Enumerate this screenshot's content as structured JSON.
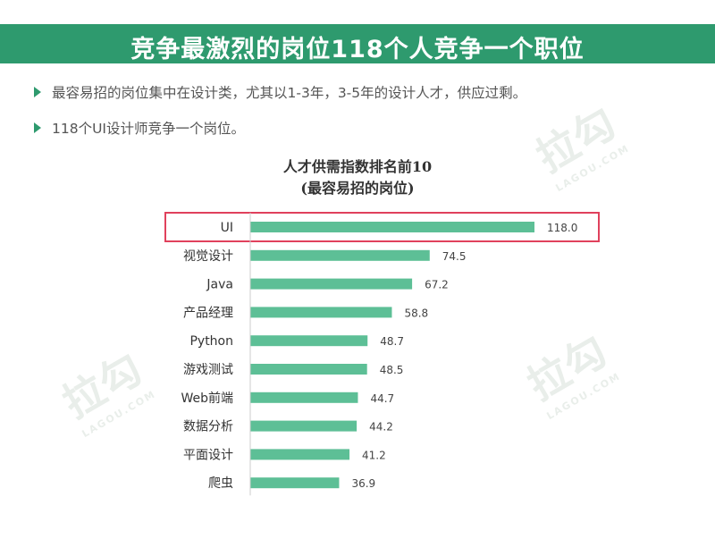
{
  "header": {
    "title": "竞争最激烈的岗位118个人竞争一个职位",
    "accent_color": "#2e9a6e"
  },
  "bullets": [
    "最容易招的岗位集中在设计类，尤其以1-3年，3-5年的设计人才，供应过剩。",
    "118个UI设计师竞争一个岗位。"
  ],
  "watermark": {
    "brand": "拉勾",
    "sub": "LAGOU.COM"
  },
  "chart_data": {
    "type": "bar",
    "orientation": "horizontal",
    "title": "人才供需指数排名前10",
    "subtitle": "(最容易招的岗位)",
    "categories": [
      "UI",
      "视觉设计",
      "Java",
      "产品经理",
      "Python",
      "游戏测试",
      "Web前端",
      "数据分析",
      "平面设计",
      "爬虫"
    ],
    "values": [
      118.0,
      74.5,
      67.2,
      58.8,
      48.7,
      48.5,
      44.7,
      44.2,
      41.2,
      36.9
    ],
    "value_labels": [
      "118.0",
      "74.5",
      "67.2",
      "58.8",
      "48.7",
      "48.5",
      "44.7",
      "44.2",
      "41.2",
      "36.9"
    ],
    "bar_color": "#5dbf96",
    "highlight_color": "#e0415c",
    "highlighted_category": "UI",
    "xlim": [
      0,
      120
    ],
    "grid": false,
    "legend": "none"
  }
}
